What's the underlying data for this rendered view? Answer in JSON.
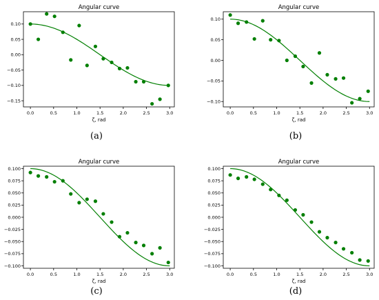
{
  "colors": {
    "series": "#007f00",
    "axis": "#000000",
    "background": "#ffffff"
  },
  "chart_data": [
    {
      "type": "scatter",
      "title": "Angular curve",
      "xlabel": "ζ, rad",
      "ylabel": "",
      "xlim": [
        -0.15,
        3.1
      ],
      "ylim": [
        -0.17,
        0.14
      ],
      "xticks": [
        0.0,
        0.5,
        1.0,
        1.5,
        2.0,
        2.5,
        3.0
      ],
      "xtick_labels": [
        "0.0",
        "0.5",
        "1.0",
        "1.5",
        "2.0",
        "2.5",
        "3.0"
      ],
      "yticks": [
        -0.15,
        -0.1,
        -0.05,
        0.0,
        0.05,
        0.1
      ],
      "ytick_labels": [
        "−0.15",
        "−0.10",
        "−0.05",
        "0.00",
        "0.05",
        "0.10"
      ],
      "caption": "(a)",
      "fit_line": {
        "amplitude": 0.1,
        "x_max": 3.0
      },
      "series": [
        {
          "kind": "points",
          "x": [
            0.0,
            0.17,
            0.35,
            0.52,
            0.7,
            0.87,
            1.05,
            1.22,
            1.4,
            1.57,
            1.75,
            1.92,
            2.09,
            2.27,
            2.44,
            2.62,
            2.79,
            2.97
          ],
          "y": [
            0.1,
            0.05,
            0.133,
            0.125,
            0.073,
            -0.017,
            0.095,
            -0.035,
            0.027,
            -0.013,
            -0.025,
            -0.045,
            -0.043,
            -0.088,
            -0.088,
            -0.16,
            -0.145,
            -0.1
          ]
        }
      ]
    },
    {
      "type": "scatter",
      "title": "Angular curve",
      "xlabel": "ζ, rad",
      "ylabel": "",
      "xlim": [
        -0.15,
        3.1
      ],
      "ylim": [
        -0.113,
        0.118
      ],
      "xticks": [
        0.0,
        0.5,
        1.0,
        1.5,
        2.0,
        2.5,
        3.0
      ],
      "xtick_labels": [
        "0.0",
        "0.5",
        "1.0",
        "1.5",
        "2.0",
        "2.5",
        "3.0"
      ],
      "yticks": [
        -0.1,
        -0.05,
        0.0,
        0.05,
        0.1
      ],
      "ytick_labels": [
        "−0.10",
        "−0.05",
        "0.00",
        "0.05",
        "0.10"
      ],
      "caption": "(b)",
      "fit_line": {
        "amplitude": 0.1,
        "x_max": 3.0
      },
      "series": [
        {
          "kind": "points",
          "x": [
            0.0,
            0.17,
            0.35,
            0.52,
            0.7,
            0.87,
            1.05,
            1.22,
            1.4,
            1.57,
            1.75,
            1.92,
            2.09,
            2.27,
            2.44,
            2.62,
            2.79,
            2.97
          ],
          "y": [
            0.11,
            0.09,
            0.093,
            0.052,
            0.096,
            0.05,
            0.048,
            0.0,
            0.01,
            -0.015,
            -0.055,
            0.018,
            -0.035,
            -0.045,
            -0.043,
            -0.103,
            -0.093,
            -0.075
          ]
        }
      ]
    },
    {
      "type": "scatter",
      "title": "Angular curve",
      "xlabel": "ζ, rad",
      "ylabel": "",
      "xlim": [
        -0.15,
        3.1
      ],
      "ylim": [
        -0.105,
        0.105
      ],
      "xticks": [
        0.0,
        0.5,
        1.0,
        1.5,
        2.0,
        2.5,
        3.0
      ],
      "xtick_labels": [
        "0.0",
        "0.5",
        "1.0",
        "1.5",
        "2.0",
        "2.5",
        "3.0"
      ],
      "yticks": [
        -0.1,
        -0.075,
        -0.05,
        -0.025,
        0.0,
        0.025,
        0.05,
        0.075,
        0.1
      ],
      "ytick_labels": [
        "−0.100",
        "−0.075",
        "−0.050",
        "−0.025",
        "0.000",
        "0.025",
        "0.050",
        "0.075",
        "0.100"
      ],
      "caption": "(c)",
      "fit_line": {
        "amplitude": 0.1,
        "x_max": 3.0
      },
      "series": [
        {
          "kind": "points",
          "x": [
            0.0,
            0.17,
            0.35,
            0.52,
            0.7,
            0.87,
            1.05,
            1.22,
            1.4,
            1.57,
            1.75,
            1.92,
            2.09,
            2.27,
            2.44,
            2.62,
            2.79,
            2.97
          ],
          "y": [
            0.092,
            0.085,
            0.083,
            0.073,
            0.075,
            0.048,
            0.03,
            0.037,
            0.033,
            0.007,
            -0.01,
            -0.04,
            -0.032,
            -0.052,
            -0.058,
            -0.075,
            -0.063,
            -0.093
          ]
        }
      ]
    },
    {
      "type": "scatter",
      "title": "Angular curve",
      "xlabel": "ζ, rad",
      "ylabel": "",
      "xlim": [
        -0.15,
        3.1
      ],
      "ylim": [
        -0.105,
        0.105
      ],
      "xticks": [
        0.0,
        0.5,
        1.0,
        1.5,
        2.0,
        2.5,
        3.0
      ],
      "xtick_labels": [
        "0.0",
        "0.5",
        "1.0",
        "1.5",
        "2.0",
        "2.5",
        "3.0"
      ],
      "yticks": [
        -0.1,
        -0.075,
        -0.05,
        -0.025,
        0.0,
        0.025,
        0.05,
        0.075,
        0.1
      ],
      "ytick_labels": [
        "−0.100",
        "−0.075",
        "−0.050",
        "−0.025",
        "0.000",
        "0.025",
        "0.050",
        "0.075",
        "0.100"
      ],
      "caption": "(d)",
      "fit_line": {
        "amplitude": 0.1,
        "x_max": 3.0
      },
      "series": [
        {
          "kind": "points",
          "x": [
            0.0,
            0.17,
            0.35,
            0.52,
            0.7,
            0.87,
            1.05,
            1.22,
            1.4,
            1.57,
            1.75,
            1.92,
            2.09,
            2.27,
            2.44,
            2.62,
            2.79,
            2.97
          ],
          "y": [
            0.087,
            0.08,
            0.083,
            0.078,
            0.068,
            0.057,
            0.045,
            0.035,
            0.015,
            0.005,
            -0.01,
            -0.03,
            -0.042,
            -0.052,
            -0.065,
            -0.073,
            -0.088,
            -0.09
          ]
        }
      ]
    }
  ]
}
